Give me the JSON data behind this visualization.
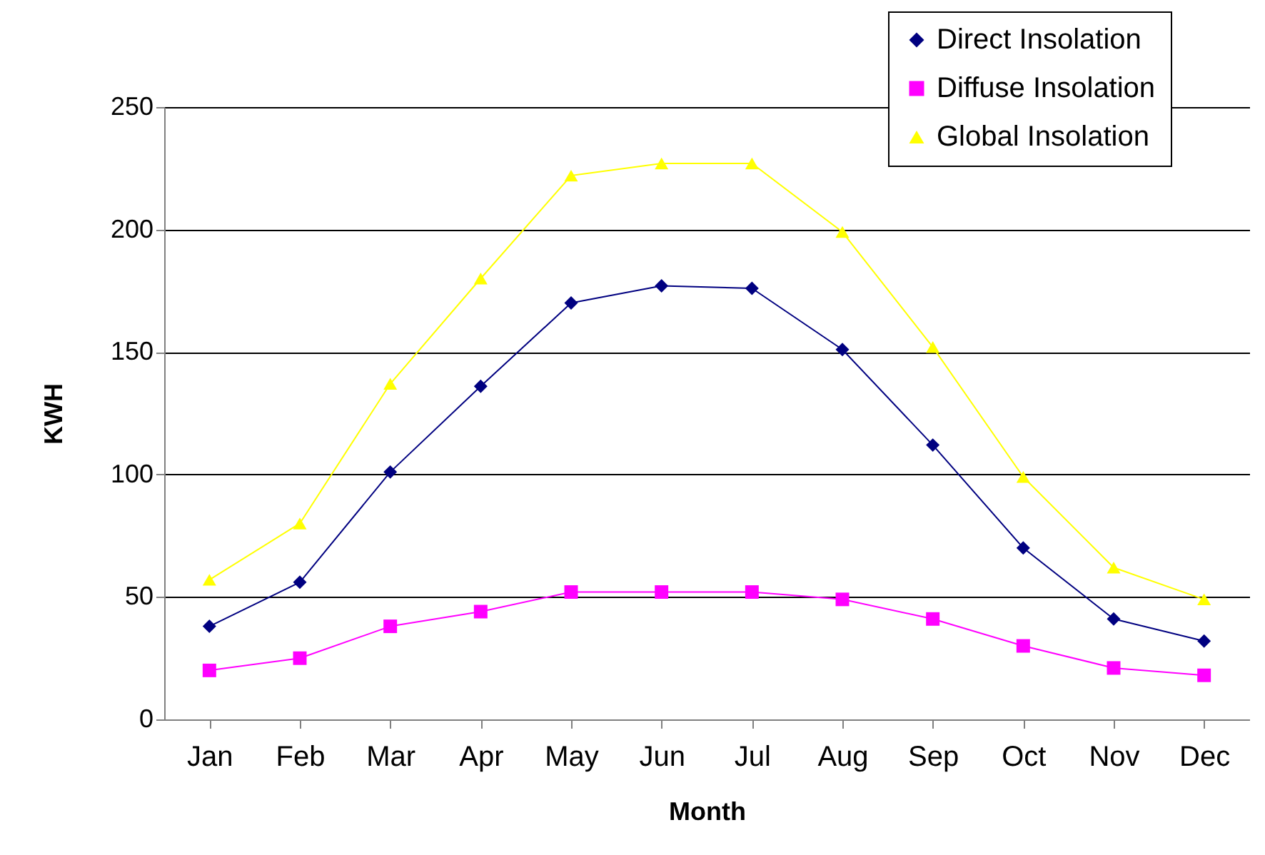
{
  "chart_data": {
    "type": "line",
    "xlabel": "Month",
    "ylabel": "KWH",
    "categories": [
      "Jan",
      "Feb",
      "Mar",
      "Apr",
      "May",
      "Jun",
      "Jul",
      "Aug",
      "Sep",
      "Oct",
      "Nov",
      "Dec"
    ],
    "series": [
      {
        "name": "Direct Insolation",
        "color": "#000080",
        "marker": "diamond",
        "values": [
          38,
          56,
          101,
          136,
          170,
          177,
          176,
          151,
          112,
          70,
          41,
          32
        ]
      },
      {
        "name": "Diffuse Insolation",
        "color": "#ff00ff",
        "marker": "square",
        "values": [
          20,
          25,
          38,
          44,
          52,
          52,
          52,
          49,
          41,
          30,
          21,
          18
        ]
      },
      {
        "name": "Global Insolation",
        "color": "#ffff00",
        "marker": "triangle",
        "values": [
          57,
          80,
          137,
          180,
          222,
          227,
          227,
          199,
          152,
          99,
          62,
          49
        ]
      }
    ],
    "ylim": [
      0,
      250
    ],
    "yticks": [
      0,
      50,
      100,
      150,
      200,
      250
    ],
    "grid": "y",
    "legend": "top right",
    "line_style": "solid"
  }
}
